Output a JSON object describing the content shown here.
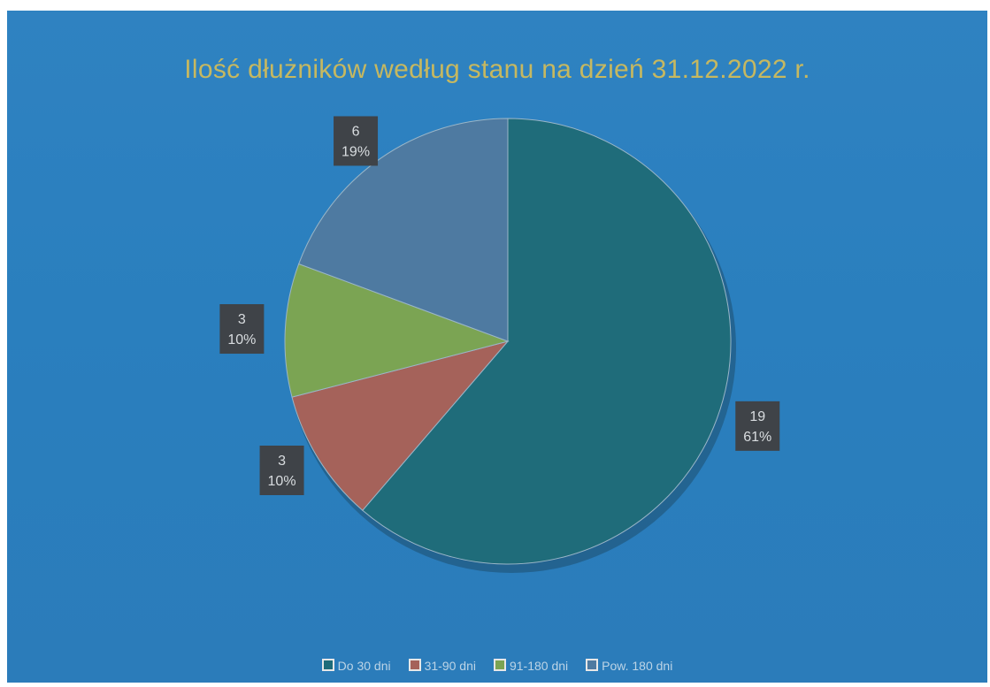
{
  "chart_data": {
    "type": "pie",
    "title": "Ilość dłużników według stanu na dzień 31.12.2022 r.",
    "categories": [
      "Do 30 dni",
      "31-90 dni",
      "91-180 dni",
      "Pow. 180 dni"
    ],
    "values": [
      19,
      3,
      3,
      6
    ],
    "percent_labels": [
      "61%",
      "10%",
      "10%",
      "19%"
    ],
    "colors": [
      "#1f6c7a",
      "#a5625a",
      "#7ba453",
      "#4e7aa1"
    ],
    "legend_position": "bottom",
    "start_angle_deg": 0,
    "direction": "clockwise"
  }
}
